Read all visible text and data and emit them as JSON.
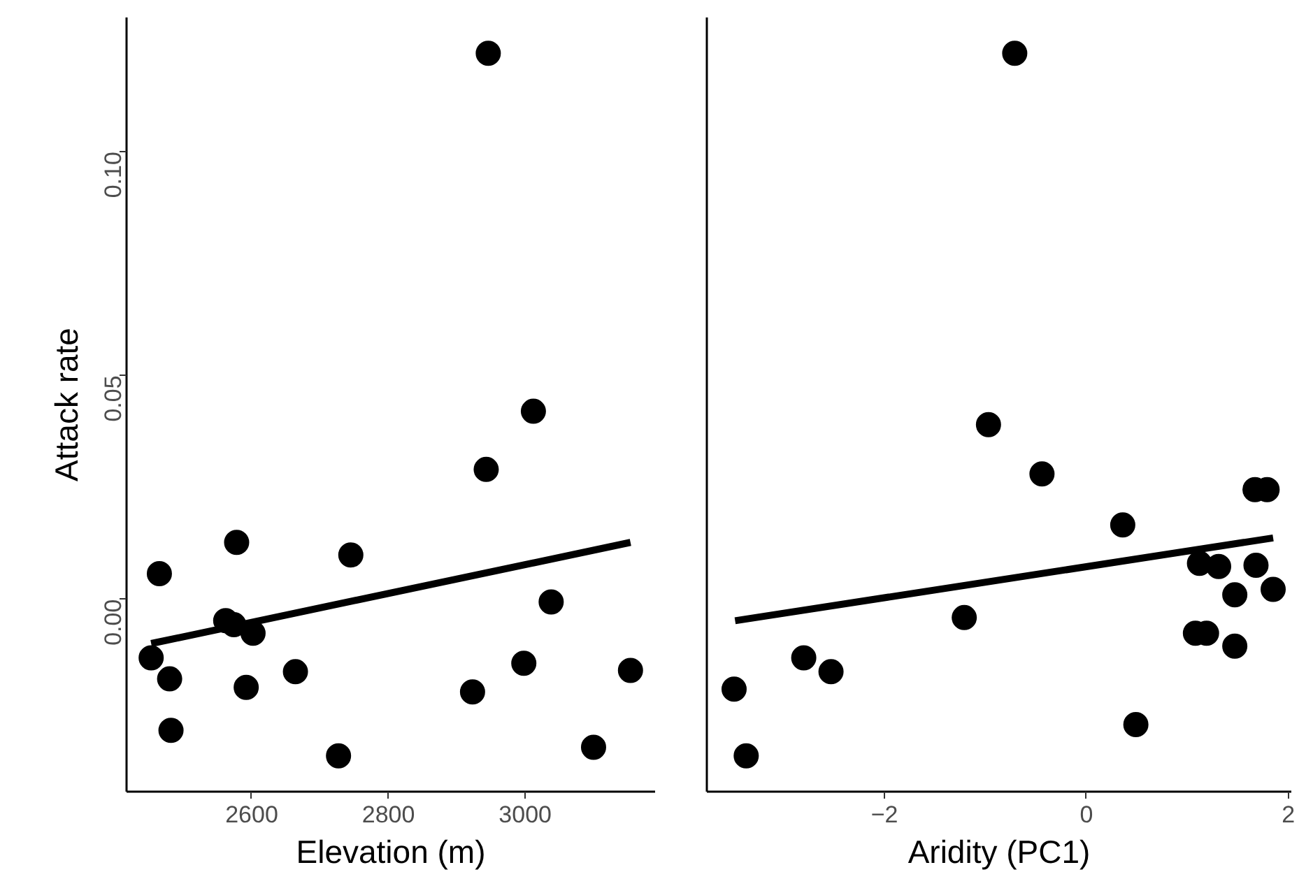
{
  "chart_data": [
    {
      "type": "scatter",
      "xlabel": "Elevation (m)",
      "ylabel": "Attack rate",
      "xlim": [
        2417,
        3190
      ],
      "ylim": [
        -0.043,
        0.13
      ],
      "xticks": [
        2600,
        2800,
        3000
      ],
      "yticks": [
        {
          "value": 0,
          "label": "0.00"
        },
        {
          "value": 0.05,
          "label": "0.05"
        },
        {
          "value": 0.1,
          "label": "0.10"
        }
      ],
      "grid": false,
      "series": [
        {
          "marker": "circle",
          "color": "#000000",
          "x": [
            2946,
            3012,
            2943,
            2578,
            2465,
            2745,
            3038,
            2562,
            2574,
            2602,
            2453,
            2480,
            2592,
            2664,
            2998,
            2923,
            3154,
            2482,
            2727,
            3100
          ],
          "values": [
            0.122,
            0.042,
            0.029,
            0.0127,
            0.0057,
            0.0099,
            -0.0006,
            -0.0048,
            -0.0057,
            -0.0076,
            -0.0131,
            -0.0178,
            -0.0197,
            -0.0162,
            -0.0143,
            -0.0207,
            -0.0159,
            -0.0293,
            -0.035,
            -0.0331
          ]
        },
        {
          "type": "line",
          "color": "#000000",
          "line_style": "solid",
          "x": [
            2453,
            3154
          ],
          "values": [
            -0.0099,
            0.0127
          ]
        }
      ]
    },
    {
      "type": "scatter",
      "xlabel": "Aridity (PC1)",
      "xlim": [
        -3.76,
        2.03
      ],
      "ylim": [
        -0.043,
        0.13
      ],
      "xticks": [
        {
          "value": -2,
          "label": "−2"
        },
        0,
        2
      ],
      "tick_labels": "x",
      "grid": false,
      "series": [
        {
          "marker": "circle",
          "color": "#000000",
          "x": [
            -0.71,
            -0.97,
            -0.44,
            1.67,
            1.79,
            0.36,
            1.12,
            1.31,
            1.68,
            1.47,
            1.85,
            -1.21,
            1.08,
            1.19,
            1.47,
            -2.8,
            -2.53,
            -3.49,
            0.49,
            -3.37
          ],
          "values": [
            0.122,
            0.039,
            0.028,
            0.0245,
            0.0245,
            0.0166,
            0.008,
            0.0073,
            0.0076,
            0.001,
            0.0022,
            -0.0041,
            -0.0076,
            -0.0076,
            -0.0105,
            -0.0131,
            -0.0162,
            -0.0201,
            -0.028,
            -0.035
          ]
        },
        {
          "type": "line",
          "color": "#000000",
          "line_style": "solid",
          "x": [
            -3.48,
            1.85
          ],
          "values": [
            -0.0048,
            0.0137
          ]
        }
      ]
    }
  ]
}
